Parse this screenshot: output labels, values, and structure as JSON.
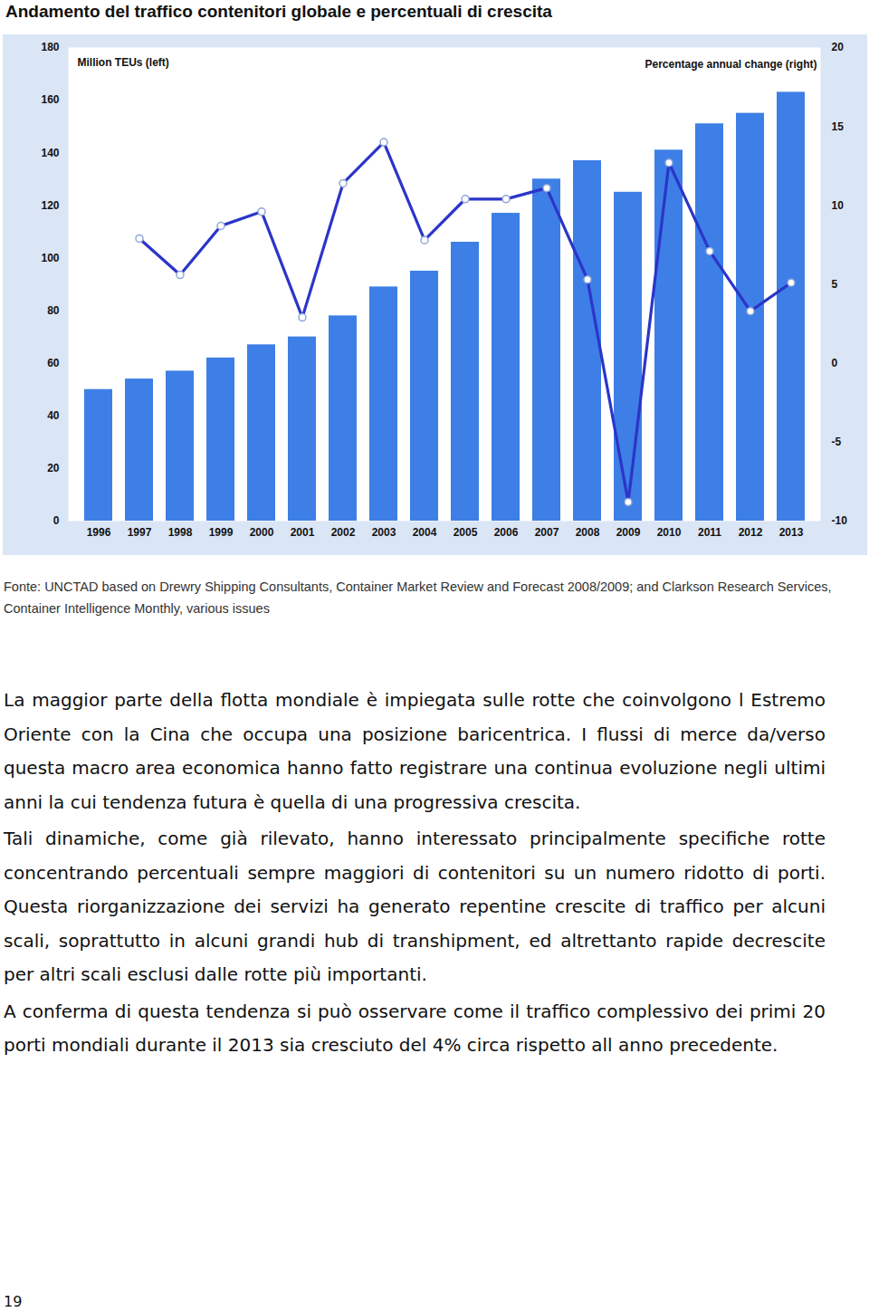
{
  "title": "Andamento del traffico contenitori globale e percentuali di crescita",
  "chart_data": {
    "type": "bar",
    "categories": [
      "1996",
      "1997",
      "1998",
      "1999",
      "2000",
      "2001",
      "2002",
      "2003",
      "2004",
      "2005",
      "2006",
      "2007",
      "2008",
      "2009",
      "2010",
      "2011",
      "2012",
      "2013"
    ],
    "series": [
      {
        "name": "Million TEUs (left)",
        "type": "bar",
        "color": "#3d7fe6",
        "values": [
          50,
          54,
          57,
          62,
          67,
          70,
          78,
          89,
          95,
          106,
          117,
          130,
          137,
          125,
          141,
          151,
          155,
          163
        ]
      },
      {
        "name": "Percentage annual change (right)",
        "type": "line",
        "axis": "y2",
        "color": "#2b35c9",
        "marker": "circle",
        "values": [
          null,
          7.9,
          5.6,
          8.7,
          9.6,
          2.9,
          11.4,
          14.0,
          7.8,
          10.4,
          10.4,
          11.1,
          5.3,
          -8.8,
          12.7,
          7.1,
          3.3,
          5.1
        ]
      }
    ],
    "ylim": [
      0,
      180
    ],
    "yticks": [
      0,
      20,
      40,
      60,
      80,
      100,
      120,
      140,
      160,
      180
    ],
    "y2lim": [
      -10,
      20
    ],
    "y2ticks": [
      -10,
      -5,
      0,
      5,
      10,
      15,
      20
    ],
    "grid": false
  },
  "source": "Fonte: UNCTAD based on Drewry Shipping Consultants, Container Market Review and Forecast 2008/2009; and Clarkson Research Services, Container Intelligence Monthly, various issues",
  "paragraphs": [
    "La maggior parte della flotta mondiale è impiegata sulle rotte che coinvolgono l Estremo Oriente con la Cina che occupa una posizione baricentrica. I flussi di merce da/verso questa macro area economica hanno fatto registrare una continua evoluzione negli ultimi anni la cui tendenza futura è quella di una progressiva crescita.",
    "Tali dinamiche, come già rilevato, hanno interessato principalmente specifiche rotte concentrando percentuali sempre maggiori di contenitori su un numero ridotto di porti. Questa riorganizzazione dei servizi ha generato repentine crescite di traffico per alcuni scali, soprattutto in alcuni grandi hub di transhipment, ed altrettanto rapide decrescite per altri scali esclusi dalle rotte più importanti.",
    "A conferma di questa tendenza si può osservare come il traffico complessivo dei primi 20 porti mondiali durante il 2013 sia cresciuto del 4% circa rispetto all anno precedente."
  ],
  "page_number": "19"
}
